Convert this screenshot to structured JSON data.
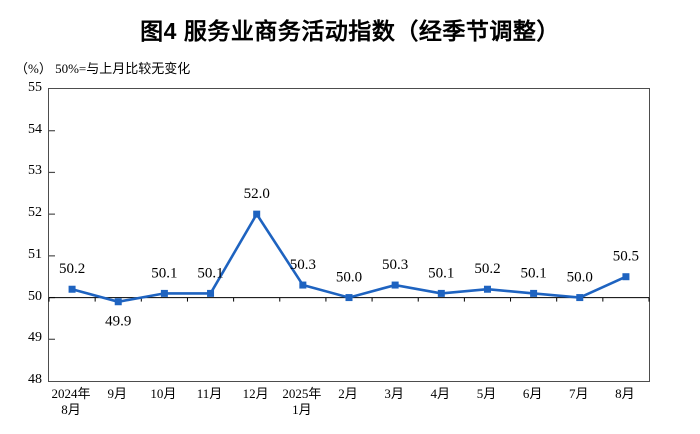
{
  "chart_data": {
    "type": "line",
    "title": "图4 服务业商务活动指数（经季节调整）",
    "unit_note": "（%） 50%=与上月比较无变化",
    "categories": [
      "2024年\n8月",
      "9月",
      "10月",
      "11月",
      "12月",
      "2025年\n1月",
      "2月",
      "3月",
      "4月",
      "5月",
      "6月",
      "7月",
      "8月"
    ],
    "values": [
      50.2,
      49.9,
      50.1,
      50.1,
      52.0,
      50.3,
      50.0,
      50.3,
      50.1,
      50.2,
      50.1,
      50.0,
      50.5
    ],
    "point_labels": [
      "50.2",
      "49.9",
      "50.1",
      "50.1",
      "52.0",
      "50.3",
      "50.0",
      "50.3",
      "50.1",
      "50.2",
      "50.1",
      "50.0",
      "50.5"
    ],
    "xlabel": "",
    "ylabel": "%",
    "ylim": [
      48,
      55
    ],
    "yticks": [
      55,
      54,
      53,
      52,
      51,
      50,
      49,
      48
    ],
    "reference_line": 50,
    "grid": "off",
    "legend": "none",
    "marker": "square",
    "colors": {
      "series": "#1E63C0",
      "reference_line": "#000000",
      "plot_border": "#4d4d4d",
      "text": "#000000",
      "background": "#ffffff"
    }
  }
}
